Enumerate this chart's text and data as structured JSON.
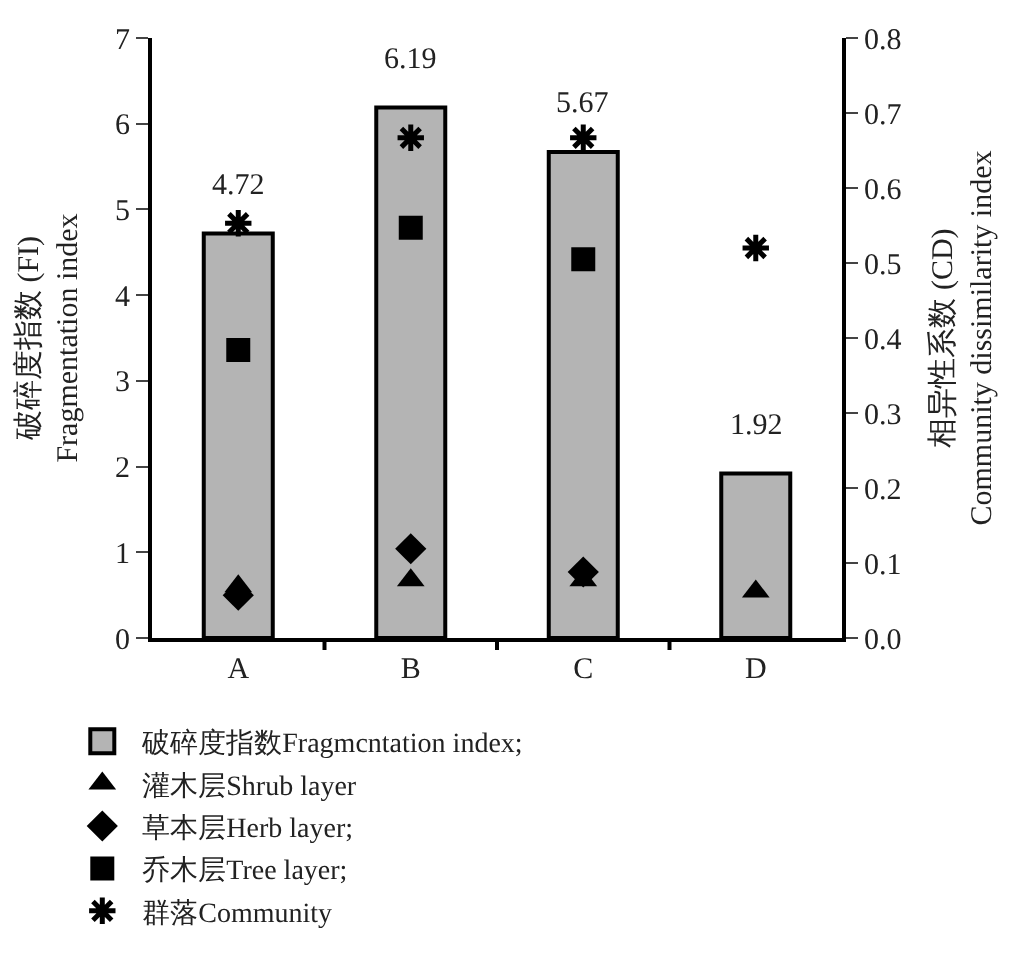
{
  "chart_data": {
    "type": "bar",
    "categories": [
      "A",
      "B",
      "C",
      "D"
    ],
    "ylabel": "破碎度指数 (FI)\nFragmentation index",
    "y2label": "相异性系数 (CD)\nCommunity dissimilarity index",
    "ylim": [
      0,
      7
    ],
    "yticks": [
      0,
      1,
      2,
      3,
      4,
      5,
      6,
      7
    ],
    "y2lim": [
      0,
      0.8
    ],
    "y2ticks": [
      {
        "value": 0,
        "label": "0.0"
      },
      0.1,
      0.2,
      0.3,
      0.4,
      0.5,
      0.6,
      0.7,
      0.8
    ],
    "legend": "bottom",
    "series": [
      {
        "name": "破碎度指数Fragmcntation index;",
        "color": "#b4b4b4",
        "values": [
          4.72,
          6.19,
          5.67,
          1.92
        ],
        "value_labels": [
          "4.72",
          "6.19",
          "5.67",
          "1.92"
        ]
      },
      {
        "name": "灌木层Shrub layer",
        "type": "scatter",
        "axis": "y2",
        "marker": "triangle",
        "color": "#000000",
        "values": [
          0.069,
          0.077,
          0.077,
          0.062
        ]
      },
      {
        "name": "草本层Herb layer;",
        "type": "scatter",
        "axis": "y2",
        "marker": "diamond",
        "color": "#000000",
        "values": [
          0.057,
          0.119,
          0.088,
          null
        ]
      },
      {
        "name": "乔木层Tree layer;",
        "type": "scatter",
        "axis": "y2",
        "marker": "square",
        "color": "#000000",
        "values": [
          0.384,
          0.547,
          0.505,
          null
        ]
      },
      {
        "name": "群落Community",
        "type": "scatter",
        "axis": "y2",
        "marker": "cross",
        "color": "#000000",
        "values": [
          0.553,
          0.667,
          0.667,
          0.52
        ]
      }
    ]
  }
}
